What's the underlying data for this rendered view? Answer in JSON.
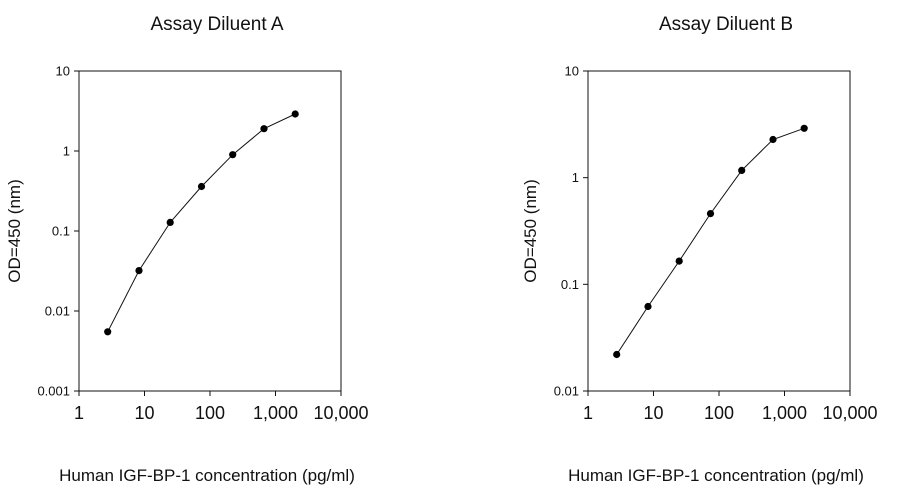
{
  "chart_data": [
    {
      "type": "line",
      "title": "Assay Diluent A",
      "xlabel": "Human IGF-BP-1 concentration (pg/ml)",
      "ylabel": "OD=450 (nm)",
      "x_scale": "log",
      "y_scale": "log",
      "xlim": [
        1,
        10000
      ],
      "ylim": [
        0.001,
        10
      ],
      "x_ticks": [
        1,
        10,
        100,
        1000,
        10000
      ],
      "x_tick_labels": [
        "1",
        "10",
        "100",
        "1,000",
        "10,000"
      ],
      "y_ticks": [
        0.001,
        0.01,
        0.1,
        1,
        10
      ],
      "y_tick_labels": [
        "0.001",
        "0.01",
        "0.1",
        "1",
        "10"
      ],
      "grid": false,
      "series": [
        {
          "x": [
            2.74,
            8.23,
            24.7,
            74.1,
            222,
            667,
            2000
          ],
          "y": [
            0.0055,
            0.032,
            0.128,
            0.36,
            0.9,
            1.9,
            2.9
          ]
        }
      ]
    },
    {
      "type": "line",
      "title": "Assay Diluent B",
      "xlabel": "Human IGF-BP-1 concentration (pg/ml)",
      "ylabel": "OD=450 (nm)",
      "x_scale": "log",
      "y_scale": "log",
      "xlim": [
        1,
        10000
      ],
      "ylim": [
        0.01,
        10
      ],
      "x_ticks": [
        1,
        10,
        100,
        1000,
        10000
      ],
      "x_tick_labels": [
        "1",
        "10",
        "100",
        "1,000",
        "10,000"
      ],
      "y_ticks": [
        0.01,
        0.1,
        1,
        10
      ],
      "y_tick_labels": [
        "0.01",
        "0.1",
        "1",
        "10"
      ],
      "grid": false,
      "series": [
        {
          "x": [
            2.74,
            8.23,
            24.7,
            74.1,
            222,
            667,
            2000
          ],
          "y": [
            0.022,
            0.062,
            0.165,
            0.46,
            1.17,
            2.28,
            2.9
          ]
        }
      ]
    }
  ]
}
